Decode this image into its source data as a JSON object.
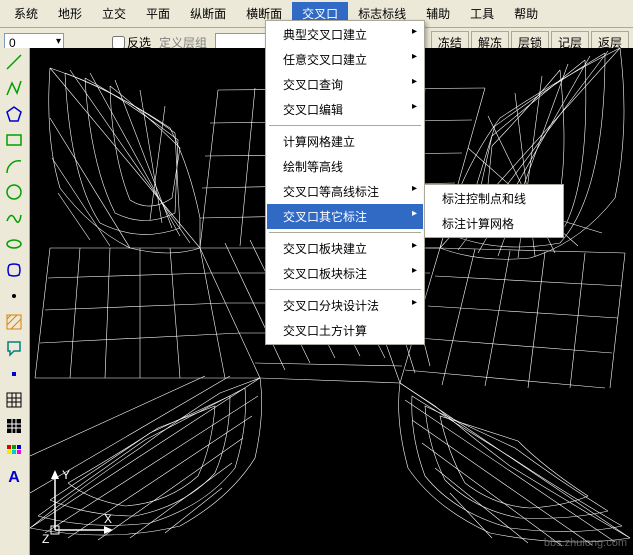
{
  "menubar": [
    "系统",
    "地形",
    "立交",
    "平面",
    "纵断面",
    "横断面",
    "交叉口",
    "标志标线",
    "辅助",
    "工具",
    "帮助"
  ],
  "menubar_active": 6,
  "toolbar": {
    "layer_value": "0",
    "invert_sel": "反选",
    "define_layer": "定义层组",
    "buttons": [
      "冻结",
      "解冻",
      "层锁",
      "记层",
      "返层"
    ]
  },
  "dropdown": {
    "items": [
      {
        "label": "典型交叉口建立",
        "sub": true
      },
      {
        "label": "任意交叉口建立",
        "sub": true
      },
      {
        "label": "交叉口查询",
        "sub": true
      },
      {
        "label": "交叉口编辑",
        "sub": true
      },
      {
        "sep": true
      },
      {
        "label": "计算网格建立",
        "sub": false
      },
      {
        "label": "绘制等高线",
        "sub": false
      },
      {
        "label": "交叉口等高线标注",
        "sub": true
      },
      {
        "label": "交叉口其它标注",
        "sub": true,
        "hover": true
      },
      {
        "sep": true
      },
      {
        "label": "交叉口板块建立",
        "sub": true
      },
      {
        "label": "交叉口板块标注",
        "sub": true
      },
      {
        "sep": true
      },
      {
        "label": "交叉口分块设计法",
        "sub": true
      },
      {
        "label": "交叉口土方计算",
        "sub": false
      }
    ]
  },
  "submenu": {
    "items": [
      {
        "label": "标注控制点和线"
      },
      {
        "label": "标注计算网格"
      }
    ]
  },
  "axes": {
    "y": "Y",
    "x": "X",
    "z": "Z"
  },
  "watermark": "bbs.zhulong.com",
  "colors": {
    "icon_green": "#00a000",
    "icon_red": "#e00000",
    "icon_blue": "#0000d0",
    "icon_cyan": "#00c0c0",
    "icon_orange": "#e08000",
    "icon_teal": "#008080"
  }
}
